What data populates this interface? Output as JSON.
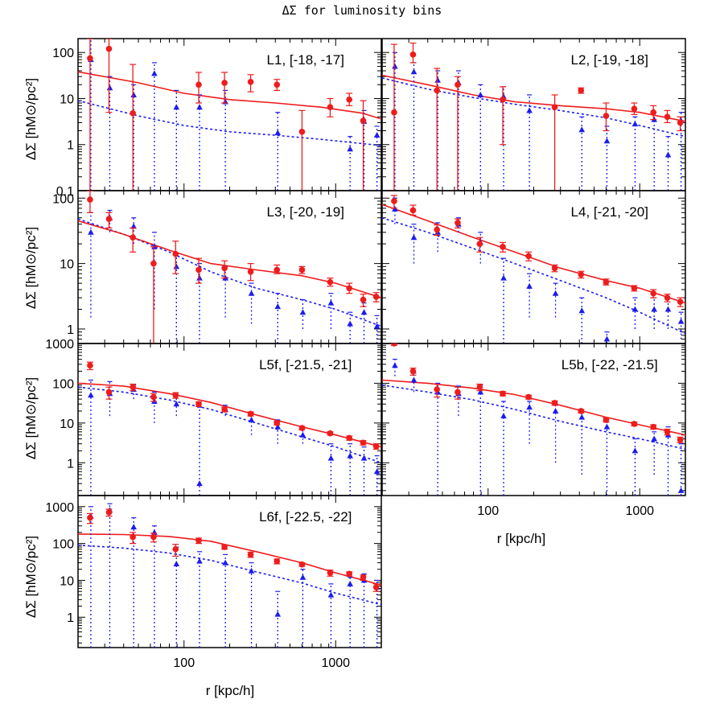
{
  "figure": {
    "title": "ΔΣ for luminosity bins",
    "ylabel": "ΔΣ  [hM⊙/pc²]",
    "xlabel": "r [kpc/h]",
    "colors": {
      "red": "#ee1c1c",
      "blue": "#1c1cee",
      "frame": "#000000"
    }
  },
  "chart_data": [
    {
      "type": "scatter",
      "panel": "L1",
      "label": "L1, [-18, -17]",
      "xscale": "log",
      "yscale": "log",
      "xlim": [
        20,
        2000
      ],
      "ylim": [
        0.1,
        200
      ],
      "yticklabels": [
        "100",
        "10",
        "1",
        "0.1"
      ],
      "red_points": {
        "x": [
          24,
          32,
          46,
          125,
          185,
          275,
          410,
          600,
          920,
          1230,
          1520
        ],
        "y": [
          75,
          120,
          4.8,
          20,
          22,
          23,
          20,
          1.9,
          6.5,
          9.5,
          3.3
        ],
        "lo": [
          0.05,
          5,
          0.05,
          8,
          8,
          14,
          15,
          0.05,
          4,
          7,
          0.05
        ],
        "hi": [
          200,
          200,
          55,
          37,
          37,
          33,
          26,
          5.5,
          10,
          13,
          9
        ]
      },
      "blue_points": {
        "x": [
          24,
          32,
          46,
          63,
          88,
          125,
          185,
          410,
          1230,
          1520,
          1850
        ],
        "y": [
          70,
          17,
          12,
          35,
          6.5,
          6.5,
          8.5,
          1.8,
          0.8,
          3.2,
          1.6
        ],
        "lo": [
          0.05,
          0.05,
          0.05,
          0.05,
          0.05,
          0.05,
          0.05,
          0.05,
          0.05,
          0.05,
          0.05
        ],
        "hi": [
          200,
          30,
          20,
          60,
          15,
          12,
          15,
          5,
          1.5,
          5.5,
          2.5
        ]
      },
      "red_model": {
        "x": [
          20,
          50,
          100,
          200,
          400,
          800,
          1500,
          2000
        ],
        "y": [
          38,
          22,
          13,
          9.5,
          8,
          6.5,
          4.8,
          3.6
        ]
      },
      "blue_model": {
        "x": [
          20,
          50,
          100,
          200,
          400,
          800,
          1500,
          2000
        ],
        "y": [
          9,
          4.2,
          2.6,
          1.9,
          1.6,
          1.3,
          1.05,
          0.95
        ]
      }
    },
    {
      "type": "scatter",
      "panel": "L2",
      "label": "L2, [-19, -18]",
      "xscale": "log",
      "yscale": "log",
      "xlim": [
        20,
        2000
      ],
      "ylim": [
        0.1,
        200
      ],
      "yticklabels": [],
      "red_points": {
        "x": [
          24,
          32,
          46,
          63,
          125,
          275,
          410,
          600,
          920,
          1230,
          1520,
          1850
        ],
        "y": [
          5,
          90,
          15,
          20,
          9.5,
          6.5,
          15,
          4.2,
          6,
          5,
          4,
          3
        ],
        "lo": [
          0.05,
          60,
          0.05,
          0.05,
          1,
          0.05,
          13,
          2,
          4.5,
          3.5,
          3,
          2
        ],
        "hi": [
          150,
          160,
          45,
          30,
          18,
          12,
          17,
          8,
          8,
          7,
          5.5,
          4
        ]
      },
      "blue_points": {
        "x": [
          24,
          32,
          46,
          63,
          88,
          125,
          185,
          410,
          600,
          920,
          1230,
          1520,
          1850
        ],
        "y": [
          50,
          38,
          25,
          22,
          12,
          11,
          5.5,
          2.1,
          1.2,
          2.8,
          3.5,
          0.6,
          3.3
        ],
        "lo": [
          0.05,
          0.05,
          0.05,
          0.05,
          0.05,
          0.05,
          0.05,
          0.05,
          0.05,
          0.05,
          0.05,
          0.05,
          0.05
        ],
        "hi": [
          100,
          60,
          40,
          40,
          20,
          18,
          12,
          4,
          2.5,
          4,
          5,
          1.5,
          5
        ]
      },
      "red_model": {
        "x": [
          20,
          40,
          80,
          150,
          300,
          600,
          1000,
          2000
        ],
        "y": [
          32,
          20,
          12,
          8.5,
          7,
          6,
          5,
          3.2
        ]
      },
      "blue_model": {
        "x": [
          20,
          40,
          80,
          150,
          300,
          600,
          1000,
          2000
        ],
        "y": [
          28,
          16,
          10.5,
          7.5,
          5.5,
          3.8,
          2.6,
          1.5
        ]
      }
    },
    {
      "type": "scatter",
      "panel": "L3",
      "label": "L3, [-20, -19]",
      "xscale": "log",
      "yscale": "log",
      "xlim": [
        20,
        2000
      ],
      "ylim": [
        0.6,
        130
      ],
      "yticklabels": [
        "100",
        "10",
        "1"
      ],
      "red_points": {
        "x": [
          24,
          32,
          46,
          63,
          88,
          125,
          185,
          275,
          410,
          600,
          920,
          1230,
          1520,
          1850
        ],
        "y": [
          95,
          48,
          25,
          10,
          14,
          8,
          8.5,
          7.5,
          8,
          8,
          5.2,
          4.2,
          2.8,
          3.1
        ],
        "lo": [
          60,
          35,
          15,
          0.5,
          7,
          5,
          6,
          5.5,
          7,
          7,
          4.5,
          3.5,
          2.2,
          2.6
        ],
        "hi": [
          130,
          60,
          35,
          18,
          22,
          12,
          11,
          10,
          9.5,
          9,
          6,
          5,
          3.4,
          3.6
        ]
      },
      "blue_points": {
        "x": [
          24,
          32,
          46,
          63,
          88,
          125,
          185,
          275,
          410,
          600,
          920,
          1230,
          1520,
          1850
        ],
        "y": [
          30,
          50,
          37,
          18,
          9,
          6,
          6,
          3.5,
          2.2,
          1.8,
          2.5,
          1.2,
          1.8,
          1.1
        ],
        "lo": [
          1.5,
          30,
          20,
          2,
          0.6,
          0.6,
          1.5,
          1.2,
          0.6,
          1,
          1,
          0.6,
          0.6,
          0.6
        ],
        "hi": [
          60,
          65,
          50,
          30,
          13,
          10,
          9,
          5,
          3.5,
          2.8,
          3.5,
          1.8,
          2.5,
          1.6
        ]
      },
      "red_model": {
        "x": [
          20,
          40,
          80,
          150,
          300,
          600,
          1000,
          2000
        ],
        "y": [
          45,
          28,
          16,
          10,
          8,
          6.5,
          5,
          3
        ]
      },
      "blue_model": {
        "x": [
          20,
          40,
          80,
          150,
          300,
          600,
          1000,
          2000
        ],
        "y": [
          48,
          28,
          15,
          7.5,
          4.2,
          2.8,
          2,
          1.1
        ]
      }
    },
    {
      "type": "scatter",
      "panel": "L4",
      "label": "L4, [-21, -20]",
      "xscale": "log",
      "yscale": "log",
      "xlim": [
        20,
        2000
      ],
      "ylim": [
        0.6,
        130
      ],
      "yticklabels": [],
      "red_points": {
        "x": [
          24,
          32,
          46,
          63,
          88,
          125,
          185,
          275,
          410,
          600,
          920,
          1230,
          1520,
          1850
        ],
        "y": [
          90,
          65,
          33,
          42,
          20,
          18,
          13,
          8.5,
          6.8,
          5.2,
          4.2,
          3.5,
          3,
          2.6
        ],
        "lo": [
          70,
          55,
          27,
          35,
          15,
          15,
          11,
          7.5,
          6,
          4.7,
          3.8,
          3,
          2.6,
          2.2
        ],
        "hi": [
          110,
          78,
          39,
          48,
          25,
          21,
          15,
          9.5,
          7.6,
          5.8,
          4.6,
          4,
          3.4,
          3
        ]
      },
      "blue_points": {
        "x": [
          24,
          32,
          46,
          63,
          88,
          125,
          185,
          275,
          410,
          600,
          920,
          1230,
          1520,
          1850
        ],
        "y": [
          68,
          25,
          30,
          40,
          21,
          6,
          4.5,
          3.5,
          1.9,
          0.7,
          2,
          2,
          2,
          1.3
        ],
        "lo": [
          40,
          10,
          15,
          30,
          10,
          0.6,
          1.5,
          1.5,
          0.6,
          0.6,
          1,
          1,
          1,
          0.7
        ],
        "hi": [
          100,
          40,
          42,
          50,
          30,
          12,
          7,
          5,
          3,
          0.9,
          3,
          3,
          3,
          1.8
        ]
      },
      "red_model": {
        "x": [
          20,
          40,
          80,
          150,
          300,
          600,
          1000,
          2000
        ],
        "y": [
          80,
          45,
          25,
          15,
          8.5,
          5.5,
          4.2,
          2.5
        ]
      },
      "blue_model": {
        "x": [
          20,
          40,
          80,
          150,
          300,
          600,
          1000,
          2000
        ],
        "y": [
          50,
          30,
          17,
          10,
          5.5,
          3,
          1.8,
          0.85
        ]
      }
    },
    {
      "type": "scatter",
      "panel": "L5f",
      "label": "L5f, [-21.5, -21]",
      "xscale": "log",
      "yscale": "log",
      "xlim": [
        20,
        2000
      ],
      "ylim": [
        0.15,
        1000
      ],
      "yticklabels": [
        "1000",
        "100",
        "10",
        "1"
      ],
      "red_points": {
        "x": [
          24,
          32,
          46,
          63,
          88,
          125,
          185,
          275,
          410,
          600,
          920,
          1230,
          1520,
          1850
        ],
        "y": [
          280,
          60,
          80,
          45,
          50,
          30,
          22,
          17,
          10,
          7.5,
          5.5,
          4.2,
          3.2,
          2.6
        ],
        "lo": [
          220,
          40,
          65,
          35,
          42,
          26,
          19,
          15,
          9,
          6.8,
          5,
          3.7,
          2.8,
          2.2
        ],
        "hi": [
          340,
          80,
          95,
          55,
          58,
          34,
          25,
          19,
          11,
          8.2,
          6,
          4.7,
          3.6,
          3
        ]
      },
      "blue_points": {
        "x": [
          24,
          32,
          46,
          63,
          88,
          125,
          185,
          275,
          410,
          600,
          920,
          1230,
          1520,
          1850
        ],
        "y": [
          50,
          55,
          70,
          35,
          30,
          0.3,
          22,
          12,
          8,
          5,
          1.3,
          1.5,
          1.3,
          0.6
        ],
        "lo": [
          0.15,
          15,
          40,
          10,
          15,
          0.15,
          15,
          5,
          3,
          3,
          0.15,
          0.15,
          0.15,
          0.15
        ],
        "hi": [
          120,
          110,
          90,
          60,
          50,
          25,
          28,
          18,
          12,
          8,
          3,
          3,
          2.5,
          1.5
        ]
      },
      "red_model": {
        "x": [
          20,
          40,
          80,
          150,
          300,
          600,
          1000,
          2000
        ],
        "y": [
          100,
          85,
          55,
          33,
          16,
          8,
          5,
          2.5
        ]
      },
      "blue_model": {
        "x": [
          20,
          40,
          80,
          150,
          300,
          600,
          1000,
          2000
        ],
        "y": [
          80,
          60,
          38,
          22,
          10,
          4.5,
          2.5,
          1
        ]
      }
    },
    {
      "type": "scatter",
      "panel": "L5b",
      "label": "L5b, [-22, -21.5]",
      "xscale": "log",
      "yscale": "log",
      "xlim": [
        20,
        2000
      ],
      "ylim": [
        0.15,
        1000
      ],
      "yticklabels": [],
      "red_points": {
        "x": [
          24,
          32,
          46,
          63,
          88,
          125,
          185,
          275,
          410,
          600,
          920,
          1230,
          1520,
          1850
        ],
        "y": [
          1000,
          200,
          70,
          60,
          80,
          55,
          45,
          32,
          20,
          12,
          9.5,
          8,
          6,
          3.8
        ],
        "lo": [
          900,
          160,
          45,
          40,
          65,
          48,
          40,
          28,
          18,
          10.5,
          8.5,
          7,
          5,
          3.2
        ],
        "hi": [
          1000,
          240,
          95,
          80,
          95,
          62,
          50,
          36,
          22,
          13.5,
          10.5,
          9,
          7,
          4.4
        ]
      },
      "blue_points": {
        "x": [
          24,
          32,
          46,
          63,
          88,
          125,
          185,
          275,
          410,
          600,
          920,
          1230,
          1520,
          1850
        ],
        "y": [
          280,
          120,
          60,
          55,
          60,
          15,
          25,
          20,
          14,
          8,
          2,
          4,
          5,
          0.2
        ],
        "lo": [
          150,
          60,
          0.15,
          15,
          0.15,
          0.15,
          3,
          1,
          0.5,
          0.15,
          0.15,
          0.5,
          0.15,
          0.15
        ],
        "hi": [
          400,
          180,
          100,
          85,
          90,
          35,
          35,
          28,
          20,
          12,
          4,
          6,
          8,
          3
        ]
      },
      "red_model": {
        "x": [
          20,
          40,
          80,
          150,
          300,
          600,
          1000,
          2000
        ],
        "y": [
          120,
          100,
          75,
          52,
          28,
          14,
          9,
          5
        ]
      },
      "blue_model": {
        "x": [
          20,
          40,
          80,
          150,
          300,
          600,
          1000,
          2000
        ],
        "y": [
          90,
          60,
          38,
          22,
          11,
          6,
          4,
          2.2
        ]
      }
    },
    {
      "type": "scatter",
      "panel": "L6f",
      "label": "L6f, [-22.5, -22]",
      "xscale": "log",
      "yscale": "log",
      "xlim": [
        20,
        2000
      ],
      "ylim": [
        0.15,
        2000
      ],
      "yticklabels": [
        "1000",
        "100",
        "10",
        "1"
      ],
      "xticklabels": [
        "100",
        "1000"
      ],
      "red_points": {
        "x": [
          24,
          32,
          46,
          63,
          88,
          125,
          185,
          275,
          410,
          600,
          920,
          1230,
          1520,
          1850
        ],
        "y": [
          500,
          700,
          150,
          150,
          70,
          120,
          80,
          50,
          33,
          27,
          16,
          15,
          12,
          6.5
        ],
        "lo": [
          350,
          550,
          100,
          110,
          45,
          100,
          70,
          42,
          28,
          24,
          13,
          13,
          10,
          5
        ],
        "hi": [
          650,
          850,
          200,
          190,
          95,
          140,
          90,
          58,
          38,
          30,
          19,
          17,
          14,
          8
        ]
      },
      "blue_points": {
        "x": [
          24,
          32,
          46,
          63,
          88,
          125,
          185,
          275,
          410,
          600,
          920,
          1230,
          1520,
          1850
        ],
        "y": [
          550,
          800,
          280,
          200,
          28,
          33,
          30,
          18,
          1.2,
          12,
          4,
          8,
          10,
          6.5
        ],
        "lo": [
          0.15,
          0.15,
          0.15,
          0.15,
          0.15,
          0.15,
          0.15,
          0.15,
          0.15,
          0.15,
          0.15,
          0.15,
          0.15,
          0.15
        ],
        "hi": [
          1000,
          1200,
          500,
          300,
          80,
          60,
          50,
          30,
          5,
          20,
          8,
          12,
          15,
          10
        ]
      },
      "red_model": {
        "x": [
          20,
          40,
          80,
          150,
          300,
          600,
          1000,
          2000
        ],
        "y": [
          180,
          175,
          155,
          115,
          60,
          30,
          16,
          7.5
        ]
      },
      "blue_model": {
        "x": [
          20,
          40,
          80,
          150,
          300,
          600,
          1000,
          2000
        ],
        "y": [
          90,
          75,
          55,
          35,
          17,
          8.5,
          4.5,
          2.2
        ]
      }
    }
  ],
  "secondary_axis": {
    "xticklabels": [
      "100",
      "1000"
    ],
    "xlabel": "r [kpc/h]"
  }
}
